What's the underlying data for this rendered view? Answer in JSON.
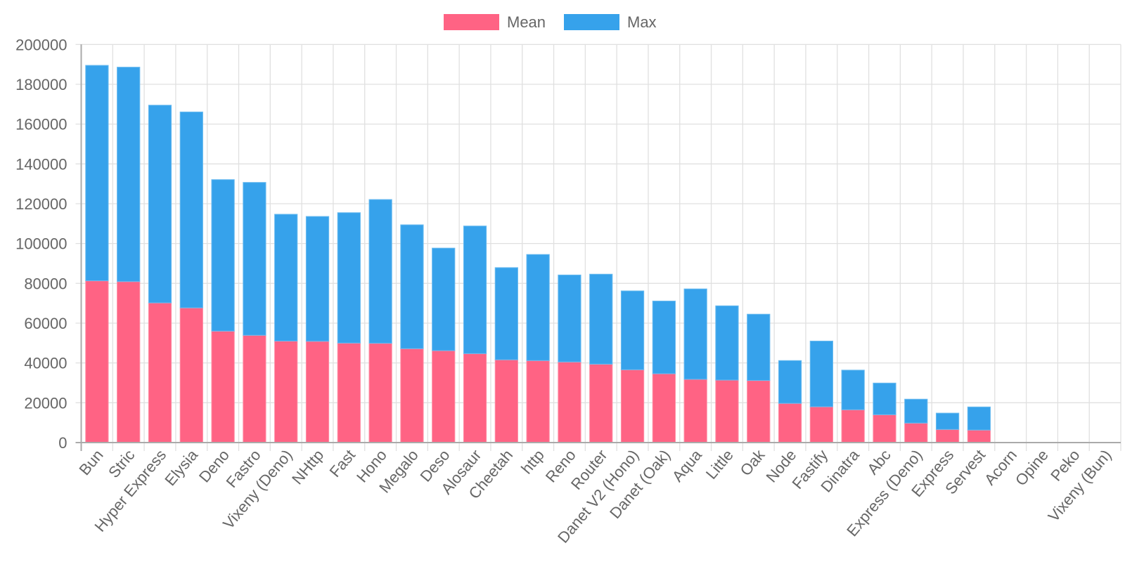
{
  "chart_data": {
    "type": "bar",
    "stacked": true,
    "title": "",
    "xlabel": "",
    "ylabel": "",
    "ylim": [
      0,
      200000
    ],
    "y_ticks": [
      "0",
      "20000",
      "40000",
      "60000",
      "80000",
      "100000",
      "120000",
      "140000",
      "160000",
      "180000",
      "200000"
    ],
    "y_tick_values": [
      0,
      20000,
      40000,
      60000,
      80000,
      100000,
      120000,
      140000,
      160000,
      180000,
      200000
    ],
    "grid": true,
    "legend_position": "top-center",
    "categories": [
      "Bun",
      "Stric",
      "Hyper Express",
      "Elysia",
      "Deno",
      "Fastro",
      "Vixeny (Deno)",
      "NHttp",
      "Fast",
      "Hono",
      "Megalo",
      "Deso",
      "Alosaur",
      "Cheetah",
      "http",
      "Reno",
      "Router",
      "Danet V2 (Hono)",
      "Danet (Oak)",
      "Aqua",
      "Little",
      "Oak",
      "Node",
      "Fastify",
      "Dinatra",
      "Abc",
      "Express (Deno)",
      "Express",
      "Servest",
      "Acorn",
      "Opine",
      "Peko",
      "Vixeny (Bun)"
    ],
    "series": [
      {
        "name": "Mean",
        "color": "#ff6384",
        "values": [
          81300,
          80900,
          70200,
          67700,
          56000,
          53900,
          51000,
          50900,
          50000,
          49900,
          47200,
          46200,
          44700,
          41600,
          41200,
          40500,
          39400,
          36600,
          34600,
          31800,
          31400,
          31200,
          19700,
          18000,
          16500,
          14000,
          9800,
          6600,
          6300,
          0,
          0,
          0,
          0
        ]
      },
      {
        "name": "Max",
        "color": "#36a2eb",
        "values": [
          108200,
          107700,
          99300,
          98400,
          76100,
          76800,
          63700,
          62700,
          65500,
          72200,
          62200,
          51500,
          64100,
          46300,
          53300,
          43700,
          45200,
          39600,
          36500,
          45400,
          37300,
          33300,
          21500,
          33000,
          19900,
          15900,
          12000,
          8200,
          11600,
          0,
          0,
          0,
          0
        ]
      }
    ]
  },
  "legend": [
    {
      "label": "Mean",
      "color": "#ff6384"
    },
    {
      "label": "Max",
      "color": "#36a2eb"
    }
  ]
}
